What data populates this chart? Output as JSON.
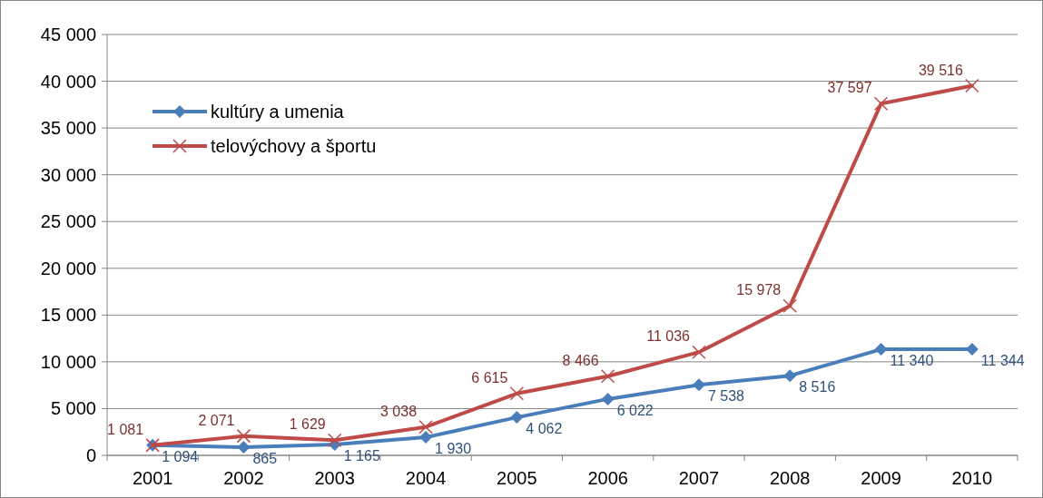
{
  "chart_data": {
    "type": "line",
    "categories": [
      "2001",
      "2002",
      "2003",
      "2004",
      "2005",
      "2006",
      "2007",
      "2008",
      "2009",
      "2010"
    ],
    "series": [
      {
        "name": "kultúry a umenia",
        "color": "#4a7ebb",
        "marker": "diamond",
        "values": [
          1094,
          865,
          1165,
          1930,
          4062,
          6022,
          7538,
          8516,
          11340,
          11344
        ],
        "value_labels": [
          "1 094",
          "865",
          "1 165",
          "1 930",
          "4 062",
          "6 022",
          "7 538",
          "8 516",
          "11 340",
          "11 344"
        ]
      },
      {
        "name": "telovýchovy a športu",
        "color": "#be4b48",
        "marker": "cross",
        "values": [
          1081,
          2071,
          1629,
          3038,
          6615,
          8466,
          11036,
          15978,
          37597,
          39516
        ],
        "value_labels": [
          "1 081",
          "2 071",
          "1 629",
          "3 038",
          "6 615",
          "8 466",
          "11 036",
          "15 978",
          "37 597",
          "39 516"
        ]
      }
    ],
    "ylim": [
      0,
      45000
    ],
    "yticks": [
      {
        "value": 0,
        "label": "0"
      },
      {
        "value": 5000,
        "label": "5 000"
      },
      {
        "value": 10000,
        "label": "10 000"
      },
      {
        "value": 15000,
        "label": "15 000"
      },
      {
        "value": 20000,
        "label": "20 000"
      },
      {
        "value": 25000,
        "label": "25 000"
      },
      {
        "value": 30000,
        "label": "30 000"
      },
      {
        "value": 35000,
        "label": "35 000"
      },
      {
        "value": 40000,
        "label": "40 000"
      },
      {
        "value": 45000,
        "label": "45 000"
      }
    ],
    "grid": "y",
    "legend": "top left",
    "line_style": "solid"
  }
}
